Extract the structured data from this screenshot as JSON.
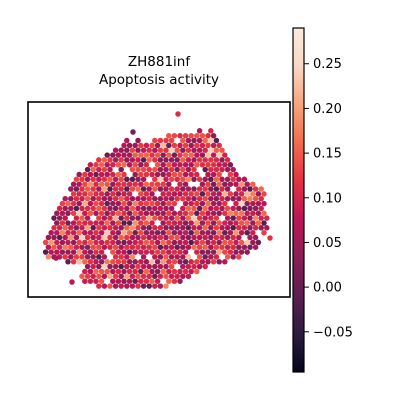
{
  "chart_data": {
    "type": "scatter",
    "title_lines": [
      "ZH881inf",
      "Apoptosis activity"
    ],
    "xlabel": "",
    "ylabel": "",
    "colormap": "rocket",
    "colormap_stops": [
      "#03051a",
      "#2d1b3f",
      "#5b1e51",
      "#8b1e57",
      "#ba1656",
      "#e13342",
      "#f26c4d",
      "#f6a47b",
      "#fad8c4",
      "#faebdd"
    ],
    "color_range": [
      -0.095,
      0.29
    ],
    "colorbar_ticks": [
      {
        "value": 0.25,
        "label": "0.25"
      },
      {
        "value": 0.2,
        "label": "0.20"
      },
      {
        "value": 0.15,
        "label": "0.15"
      },
      {
        "value": 0.1,
        "label": "0.10"
      },
      {
        "value": 0.05,
        "label": "0.05"
      },
      {
        "value": 0.0,
        "label": "0.00"
      },
      {
        "value": -0.05,
        "label": "−0.05"
      }
    ],
    "spot_value_distribution": {
      "typical_min": 0.03,
      "typical_max": 0.16,
      "mean": 0.095
    },
    "axes_ticks_visible": false,
    "legend": "colorbar-right"
  }
}
